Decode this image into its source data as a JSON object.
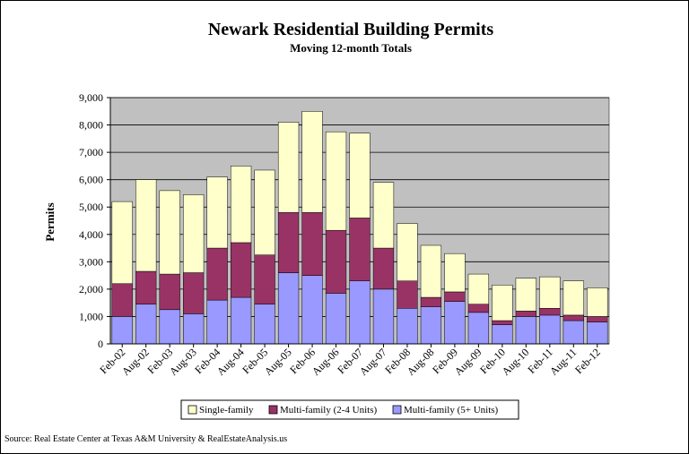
{
  "chart_data": {
    "type": "bar",
    "stacked": true,
    "title": "Newark Residential Building Permits",
    "subtitle": "Moving 12-month Totals",
    "xlabel": "",
    "ylabel": "Permits",
    "ylim": [
      0,
      9000
    ],
    "ytick_labels": [
      "0",
      "1,000",
      "2,000",
      "3,000",
      "4,000",
      "5,000",
      "6,000",
      "7,000",
      "8,000",
      "9,000"
    ],
    "xtick_labels": [
      "Feb-02",
      "Aug-02",
      "Feb-03",
      "Aug-03",
      "Feb-04",
      "Aug-04",
      "Feb-05",
      "Aug-05",
      "Feb-06",
      "Aug-06",
      "Feb-07",
      "Aug-07",
      "Feb-08",
      "Aug-08",
      "Feb-09",
      "Aug-09",
      "Feb-10",
      "Aug-10",
      "Feb-11",
      "Aug-11",
      "Feb-12"
    ],
    "grid": true,
    "legend_position": "bottom",
    "categories": [
      "Feb-02",
      "Aug-02",
      "Feb-03",
      "Aug-03",
      "Feb-04",
      "Aug-04",
      "Feb-05",
      "Aug-05",
      "Feb-06",
      "Aug-06",
      "Feb-07",
      "Aug-07",
      "Feb-08",
      "Aug-08",
      "Feb-09",
      "Aug-09",
      "Feb-10",
      "Aug-10",
      "Feb-11",
      "Aug-11",
      "Feb-12"
    ],
    "series": [
      {
        "name": "Multi-family (5+ Units)",
        "color": "#9999ff",
        "values": [
          1000,
          1450,
          1250,
          1100,
          1600,
          1700,
          1450,
          2600,
          2500,
          1850,
          2300,
          2000,
          1300,
          1350,
          1550,
          1150,
          700,
          1000,
          1050,
          850,
          800
        ]
      },
      {
        "name": "Multi-family (2-4 Units)",
        "color": "#993366",
        "values": [
          1200,
          1200,
          1300,
          1500,
          1900,
          2000,
          1800,
          2200,
          2300,
          2300,
          2300,
          1500,
          1000,
          350,
          350,
          300,
          150,
          200,
          250,
          200,
          200
        ]
      },
      {
        "name": "Single-family",
        "color": "#ffffcc",
        "values": [
          3000,
          3350,
          3050,
          2850,
          2600,
          2800,
          3100,
          3300,
          3700,
          3600,
          3100,
          2400,
          2100,
          1900,
          1400,
          1100,
          1300,
          1200,
          1150,
          1250,
          1050
        ]
      }
    ]
  },
  "source_text": "Source: Real Estate Center at Texas A&M University & RealEstateAnalysis.us",
  "colors": {
    "plot_background": "#c0c0c0",
    "frame": "#000000"
  }
}
